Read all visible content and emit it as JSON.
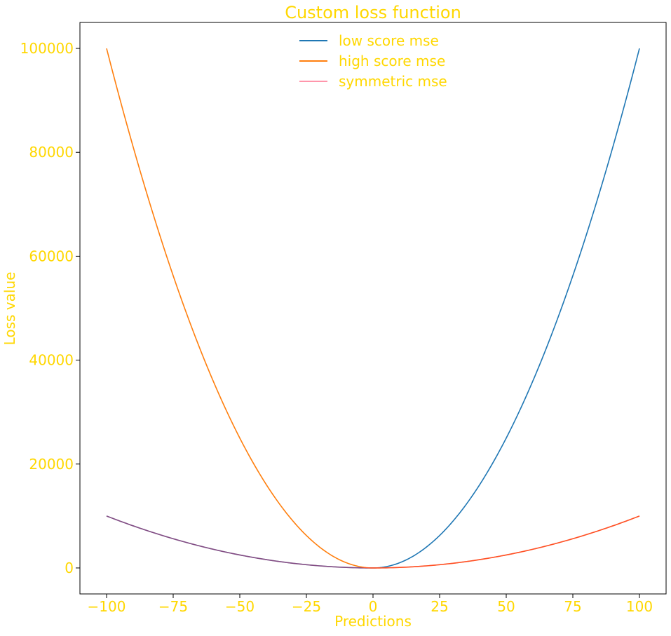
{
  "chart_data": {
    "type": "line",
    "title": "Custom loss function",
    "xlabel": "Predictions",
    "ylabel": "Loss value",
    "xlim": [
      -110,
      110
    ],
    "ylim": [
      -5000,
      105000
    ],
    "xticks": [
      -100,
      -75,
      -50,
      -25,
      0,
      25,
      50,
      75,
      100
    ],
    "xtick_labels": [
      "−100",
      "−75",
      "−50",
      "−25",
      "0",
      "25",
      "50",
      "75",
      "100"
    ],
    "yticks": [
      0,
      20000,
      40000,
      60000,
      80000,
      100000
    ],
    "ytick_labels": [
      "0",
      "20000",
      "40000",
      "60000",
      "80000",
      "100000"
    ],
    "grid": false,
    "legend_position": "upper-center",
    "text_color": "#ffd700",
    "x": [
      -100,
      -90,
      -80,
      -70,
      -60,
      -50,
      -40,
      -30,
      -20,
      -10,
      0,
      10,
      20,
      30,
      40,
      50,
      60,
      70,
      80,
      90,
      100
    ],
    "series": [
      {
        "name": "low score mse",
        "color": "#1f77b4",
        "opacity": 1,
        "values": [
          10000,
          8100,
          6400,
          4900,
          3600,
          2500,
          1600,
          900,
          400,
          100,
          0,
          1000,
          4000,
          9000,
          16000,
          25000,
          36000,
          49000,
          64000,
          81000,
          100000
        ]
      },
      {
        "name": "high score mse",
        "color": "#ff7f0e",
        "opacity": 1,
        "values": [
          100000,
          81000,
          64000,
          49000,
          36000,
          25000,
          16000,
          9000,
          4000,
          1000,
          0,
          100,
          400,
          900,
          1600,
          2500,
          3600,
          4900,
          6400,
          8100,
          10000
        ]
      },
      {
        "name": "symmetric mse",
        "color": "#ff1744",
        "opacity": 0.45,
        "values": [
          10000,
          8100,
          6400,
          4900,
          3600,
          2500,
          1600,
          900,
          400,
          100,
          0,
          100,
          400,
          900,
          1600,
          2500,
          3600,
          4900,
          6400,
          8100,
          10000
        ]
      }
    ]
  }
}
